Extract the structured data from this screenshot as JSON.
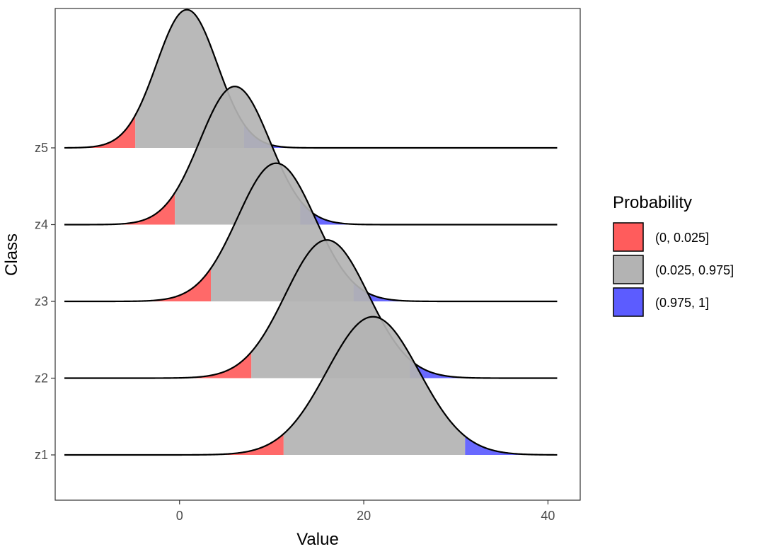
{
  "chart_data": {
    "type": "ridgeline",
    "xlabel": "Value",
    "ylabel": "Class",
    "xlim": [
      -13.5,
      43.5
    ],
    "x_ticks": [
      0,
      20,
      40
    ],
    "x_range": [
      -12.5,
      41
    ],
    "classes": [
      "z1",
      "z2",
      "z3",
      "z4",
      "z5"
    ],
    "ridge_scale": 1.8,
    "series": [
      {
        "name": "z1",
        "mean": 21,
        "sd": 5,
        "lower": 11.3,
        "upper": 31.0
      },
      {
        "name": "z2",
        "mean": 16,
        "sd": 4.5,
        "lower": 7.8,
        "upper": 25.0
      },
      {
        "name": "z3",
        "mean": 10.5,
        "sd": 4.2,
        "lower": 3.4,
        "upper": 18.9
      },
      {
        "name": "z4",
        "mean": 6,
        "sd": 3.8,
        "lower": -0.5,
        "upper": 13.1
      },
      {
        "name": "z5",
        "mean": 0.8,
        "sd": 3.3,
        "lower": -4.8,
        "upper": 7.0
      }
    ],
    "legend": {
      "title": "Probability",
      "placement": "right",
      "entries": [
        {
          "label": "(0, 0.025]",
          "color": "#FF5C5C"
        },
        {
          "label": "(0.025, 0.975]",
          "color": "#B3B3B3"
        },
        {
          "label": "(0.975, 1]",
          "color": "#5C5CFF"
        }
      ]
    }
  }
}
